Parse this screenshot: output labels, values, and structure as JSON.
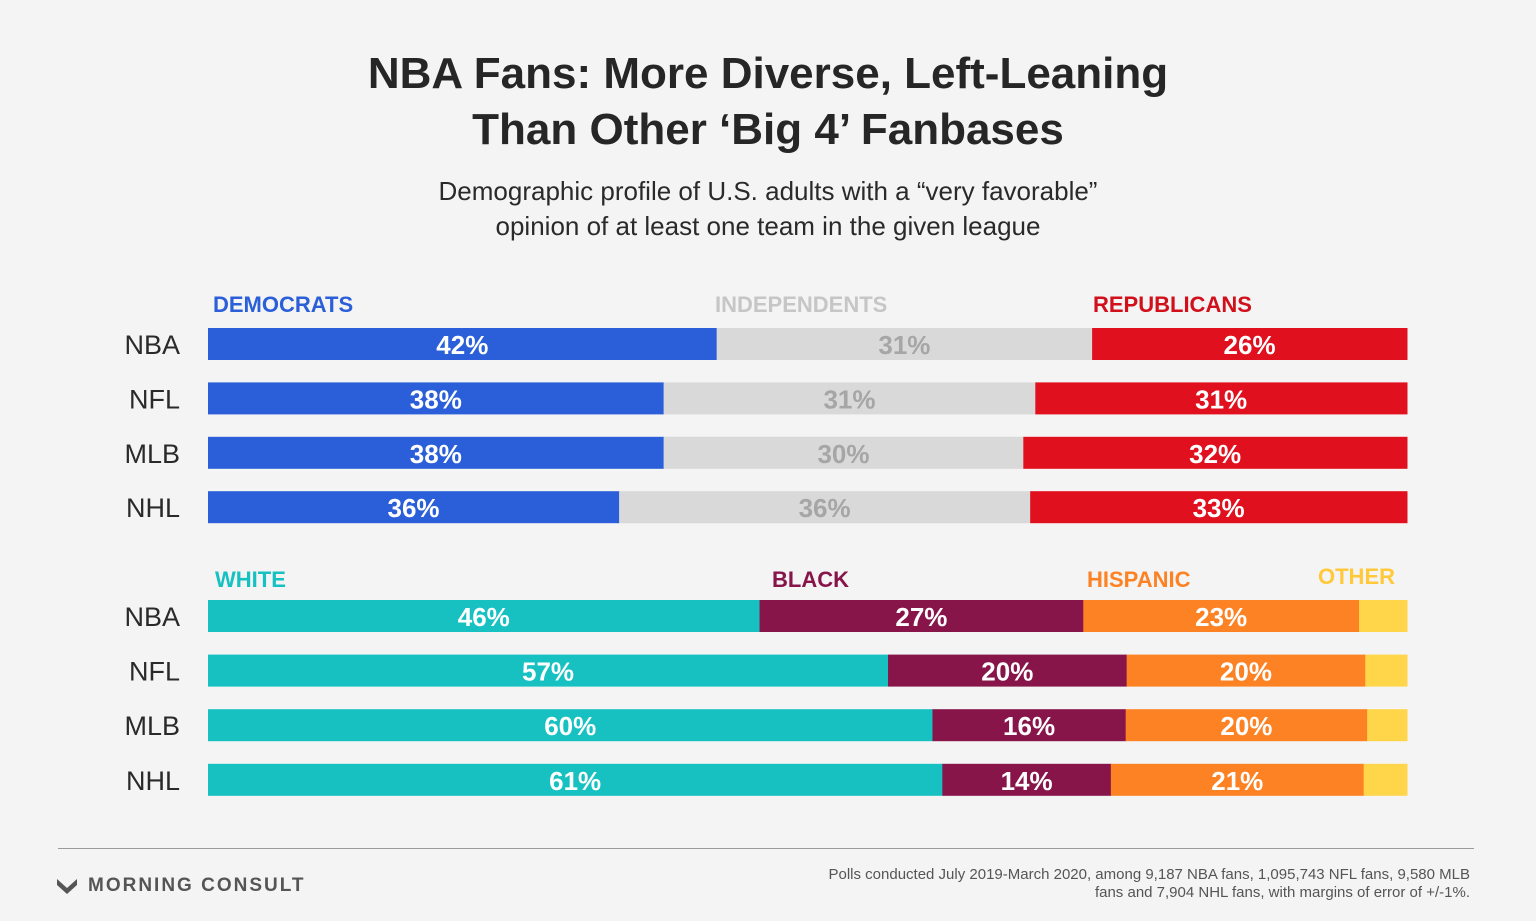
{
  "title": {
    "line1": "NBA Fans: More Diverse, Left-Leaning",
    "line2": "Than Other ‘Big 4’ Fanbases"
  },
  "subtitle": {
    "line1": "Demographic profile of U.S. adults with a “very favorable”",
    "line2": "opinion of at least one team in the given league"
  },
  "colors": {
    "democrats": "#2b5fd9",
    "independents": "#d9d9d9",
    "republicans": "#e0101e",
    "white": "#17c1c1",
    "black": "#87154a",
    "hispanic": "#fc8224",
    "other": "#ffd54a"
  },
  "chart_data": [
    {
      "type": "bar",
      "orientation": "horizontal",
      "stacked": true,
      "normalized_100": true,
      "categories": [
        "NBA",
        "NFL",
        "MLB",
        "NHL"
      ],
      "legend_placement": "above-bars",
      "series": [
        {
          "name": "DEMOCRATS",
          "values": [
            42,
            38,
            38,
            36
          ],
          "labels": [
            "42%",
            "38%",
            "38%",
            "36%"
          ],
          "color": "#2b5fd9",
          "label_color": "#ffffff",
          "legend_color": "#2b5fd9"
        },
        {
          "name": "INDEPENDENTS",
          "values": [
            31,
            31,
            30,
            36
          ],
          "labels": [
            "31%",
            "31%",
            "30%",
            "36%"
          ],
          "color": "#d9d9d9",
          "label_color": "#a6a6a6",
          "legend_color": "#c6c6c6"
        },
        {
          "name": "REPUBLICANS",
          "values": [
            26,
            31,
            32,
            33
          ],
          "labels": [
            "26%",
            "31%",
            "32%",
            "33%"
          ],
          "color": "#e0101e",
          "label_color": "#ffffff",
          "legend_color": "#d1101c"
        }
      ]
    },
    {
      "type": "bar",
      "orientation": "horizontal",
      "stacked": true,
      "normalized_100": true,
      "categories": [
        "NBA",
        "NFL",
        "MLB",
        "NHL"
      ],
      "legend_placement": "above-bars",
      "series": [
        {
          "name": "WHITE",
          "values": [
            46,
            57,
            60,
            61
          ],
          "labels": [
            "46%",
            "57%",
            "60%",
            "61%"
          ],
          "color": "#17c1c1",
          "label_color": "#ffffff",
          "legend_color": "#17c1c1"
        },
        {
          "name": "BLACK",
          "values": [
            27,
            20,
            16,
            14
          ],
          "labels": [
            "27%",
            "20%",
            "16%",
            "14%"
          ],
          "color": "#87154a",
          "label_color": "#ffffff",
          "legend_color": "#87154a"
        },
        {
          "name": "HISPANIC",
          "values": [
            23,
            20,
            20,
            21
          ],
          "labels": [
            "23%",
            "20%",
            "20%",
            "21%"
          ],
          "color": "#fc8224",
          "label_color": "#ffffff",
          "legend_color": "#fc8224"
        },
        {
          "name": "OTHER",
          "values": [
            4,
            3.5,
            3.3,
            3.6
          ],
          "labels": [
            "",
            "",
            "",
            ""
          ],
          "color": "#ffd54a",
          "label_color": "#ffffff",
          "legend_color": "#ffc93a"
        }
      ]
    }
  ],
  "footer": {
    "brand": "MORNING CONSULT",
    "note_line1": "Polls conducted July 2019-March 2020, among 9,187 NBA fans, 1,095,743 NFL fans, 9,580 MLB",
    "note_line2": "fans and 7,904 NHL fans, with margins of error of +/-1%."
  }
}
